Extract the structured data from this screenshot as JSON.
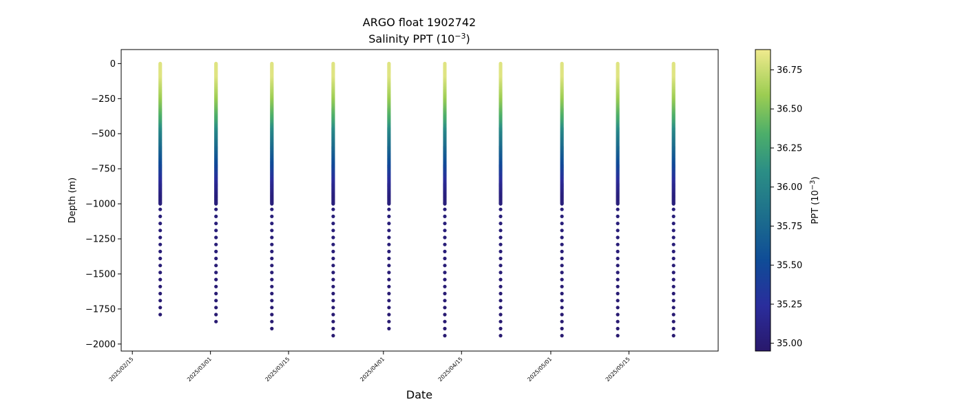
{
  "chart_data": {
    "type": "scatter",
    "title": "ARGO float 1902742",
    "subtitle": {
      "pre": "Salinity PPT (10",
      "sup": "−3",
      "post": ")"
    },
    "xlabel": "Date",
    "ylabel": "Depth (m)",
    "ylim": [
      -2050,
      100
    ],
    "xlim": [
      "2025-02-13",
      "2025-05-31"
    ],
    "y_ticks": [
      0,
      -250,
      -500,
      -750,
      -1000,
      -1250,
      -1500,
      -1750,
      -2000
    ],
    "y_tick_labels": [
      "0",
      "−250",
      "−500",
      "−750",
      "−1000",
      "−1250",
      "−1500",
      "−1750",
      "−2000"
    ],
    "x_ticks": [
      "2025-02-15",
      "2025-03-01",
      "2025-03-15",
      "2025-04-01",
      "2025-04-15",
      "2025-05-01",
      "2025-05-15"
    ],
    "x_tick_labels": [
      "2025/02/15",
      "2025/03/01",
      "2025/03/15",
      "2025/04/01",
      "2025/04/15",
      "2025/05/01",
      "2025/05/15"
    ],
    "colorbar": {
      "label": {
        "pre": "PPT (10",
        "sup": "−3",
        "post": ")"
      },
      "range": [
        34.95,
        36.88
      ],
      "ticks": [
        35.0,
        35.25,
        35.5,
        35.75,
        36.0,
        36.25,
        36.5,
        36.75
      ],
      "tick_labels": [
        "35.00",
        "35.25",
        "35.50",
        "35.75",
        "36.00",
        "36.25",
        "36.50",
        "36.75"
      ],
      "colormap": "haline"
    },
    "profiles": [
      {
        "date": "2025-02-20",
        "max_depth": -1830
      },
      {
        "date": "2025-03-02",
        "max_depth": -1880
      },
      {
        "date": "2025-03-12",
        "max_depth": -1930
      },
      {
        "date": "2025-03-23",
        "max_depth": -1980
      },
      {
        "date": "2025-04-02",
        "max_depth": -1930
      },
      {
        "date": "2025-04-12",
        "max_depth": -1980
      },
      {
        "date": "2025-04-22",
        "max_depth": -1980
      },
      {
        "date": "2025-05-03",
        "max_depth": -1980
      },
      {
        "date": "2025-05-13",
        "max_depth": -1980
      },
      {
        "date": "2025-05-23",
        "max_depth": -1980
      }
    ],
    "salinity_profile_shape": [
      {
        "depth": 0,
        "value": 36.82
      },
      {
        "depth": -100,
        "value": 36.82
      },
      {
        "depth": -250,
        "value": 36.6
      },
      {
        "depth": -400,
        "value": 36.3
      },
      {
        "depth": -500,
        "value": 36.0
      },
      {
        "depth": -600,
        "value": 35.78
      },
      {
        "depth": -750,
        "value": 35.45
      },
      {
        "depth": -850,
        "value": 35.2
      },
      {
        "depth": -950,
        "value": 35.05
      },
      {
        "depth": -2000,
        "value": 34.98
      }
    ]
  }
}
